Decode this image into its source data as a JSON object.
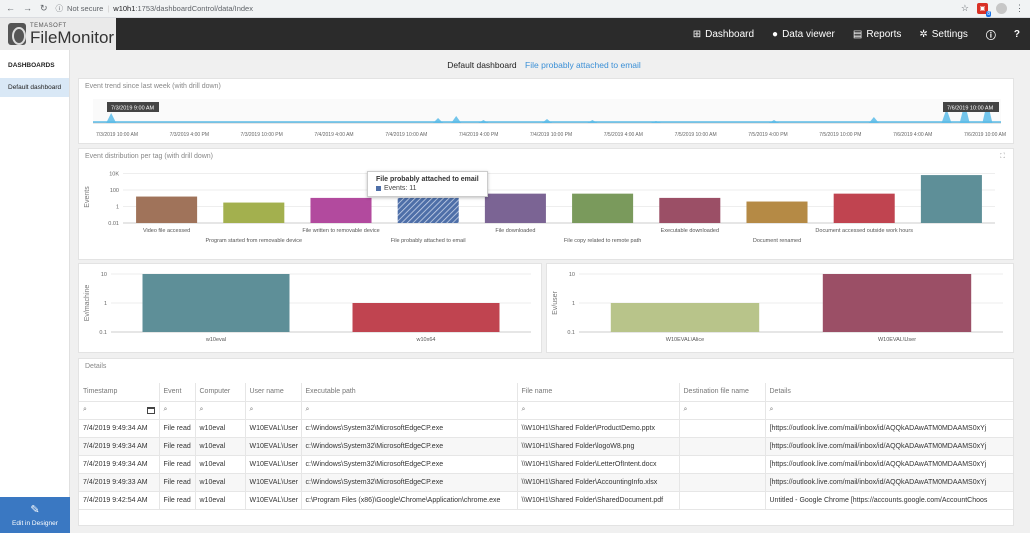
{
  "browser": {
    "security": "Not secure",
    "url_host": "w10h1",
    "url_path": ":1753/dashboardControl/data/Index",
    "ext_badge": "8"
  },
  "app": {
    "logo_small": "TEMASOFT",
    "logo_big": "FileMonitor",
    "menu": [
      {
        "label": "Dashboard",
        "icon": "dashboard-icon"
      },
      {
        "label": "Data viewer",
        "icon": "user-icon"
      },
      {
        "label": "Reports",
        "icon": "reports-icon"
      },
      {
        "label": "Settings",
        "icon": "gear-icon"
      }
    ]
  },
  "sidebar": {
    "header": "DASHBOARDS",
    "items": [
      "Default dashboard"
    ],
    "designer_label": "Edit in Designer"
  },
  "title": {
    "main": "Default dashboard",
    "link": "File probably attached to email"
  },
  "trend": {
    "title": "Event trend since last week (with drill down)",
    "range_start": "7/3/2019 9:00 AM",
    "range_end": "7/6/2019 10:00 AM",
    "ticks": [
      "7/3/2019 10:00 AM",
      "7/3/2019 4:00 PM",
      "7/3/2019 10:00 PM",
      "7/4/2019 4:00 AM",
      "7/4/2019 10:00 AM",
      "7/4/2019 4:00 PM",
      "7/4/2019 10:00 PM",
      "7/5/2019 4:00 AM",
      "7/5/2019 10:00 AM",
      "7/5/2019 4:00 PM",
      "7/5/2019 10:00 PM",
      "7/6/2019 4:00 AM",
      "7/6/2019 10:00 AM"
    ]
  },
  "chart_data": [
    {
      "type": "bar",
      "title": "Event distribution per tag (with drill down)",
      "ylabel": "Events",
      "yscale": "log",
      "yticks": [
        "10K",
        "100",
        "1",
        "0.01"
      ],
      "categories": [
        "Video file accessed",
        "Program started from removable device",
        "File written to removable device",
        "File probably attached to email",
        "File downloaded",
        "File copy related to remote path",
        "Executable downloaded",
        "Document renamed",
        "Document accessed outside work hours",
        ""
      ],
      "values": [
        16,
        3,
        11,
        11,
        36,
        36,
        11,
        4,
        36,
        6400
      ],
      "colors": [
        "#a0735a",
        "#a3b04e",
        "#b24a9e",
        "#4e6fa8",
        "#7b6494",
        "#7a9a5c",
        "#9b4f66",
        "#b58a45",
        "#c04450",
        "#5e8f98"
      ]
    },
    {
      "type": "bar",
      "title": "",
      "ylabel": "Ev/machine",
      "yscale": "log",
      "yticks": [
        "10",
        "1",
        "0.1"
      ],
      "categories": [
        "w10eval",
        "w10x64"
      ],
      "values": [
        10,
        1
      ],
      "colors": [
        "#5e8f98",
        "#c04450"
      ]
    },
    {
      "type": "bar",
      "title": "",
      "ylabel": "Ev/user",
      "yscale": "log",
      "yticks": [
        "10",
        "1",
        "0.1"
      ],
      "categories": [
        "W10EVAL\\Alice",
        "W10EVAL\\User"
      ],
      "values": [
        1,
        10
      ],
      "colors": [
        "#b8c48a",
        "#9b4f66"
      ]
    }
  ],
  "tooltip": {
    "title": "File probably attached to email",
    "text": "Events: 11"
  },
  "details": {
    "title": "Details",
    "columns": [
      "Timestamp",
      "Event",
      "Computer",
      "User name",
      "Executable path",
      "File name",
      "Destination file name",
      "Details"
    ],
    "rows": [
      [
        "7/4/2019 9:49:34 AM",
        "File read",
        "w10eval",
        "W10EVAL\\User",
        "c:\\Windows\\System32\\MicrosoftEdgeCP.exe",
        "\\\\W10H1\\Shared Folder\\ProductDemo.pptx",
        "",
        "[https://outlook.live.com/mail/inbox/id/AQQkADAwATM0MDAAMS0xYj"
      ],
      [
        "7/4/2019 9:49:34 AM",
        "File read",
        "w10eval",
        "W10EVAL\\User",
        "c:\\Windows\\System32\\MicrosoftEdgeCP.exe",
        "\\\\W10H1\\Shared Folder\\logoW8.png",
        "",
        "[https://outlook.live.com/mail/inbox/id/AQQkADAwATM0MDAAMS0xYj"
      ],
      [
        "7/4/2019 9:49:34 AM",
        "File read",
        "w10eval",
        "W10EVAL\\User",
        "c:\\Windows\\System32\\MicrosoftEdgeCP.exe",
        "\\\\W10H1\\Shared Folder\\LetterOfIntent.docx",
        "",
        "[https://outlook.live.com/mail/inbox/id/AQQkADAwATM0MDAAMS0xYj"
      ],
      [
        "7/4/2019 9:49:33 AM",
        "File read",
        "w10eval",
        "W10EVAL\\User",
        "c:\\Windows\\System32\\MicrosoftEdgeCP.exe",
        "\\\\W10H1\\Shared Folder\\AccountingInfo.xlsx",
        "",
        "[https://outlook.live.com/mail/inbox/id/AQQkADAwATM0MDAAMS0xYj"
      ],
      [
        "7/4/2019 9:42:54 AM",
        "File read",
        "w10eval",
        "W10EVAL\\User",
        "c:\\Program Files (x86)\\Google\\Chrome\\Application\\chrome.exe",
        "\\\\W10H1\\Shared Folder\\SharedDocument.pdf",
        "",
        "Untitled - Google Chrome [https://accounts.google.com/AccountChoos"
      ]
    ]
  }
}
